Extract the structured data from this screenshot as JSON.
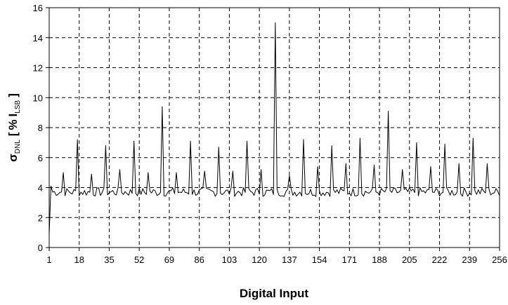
{
  "chart_data": {
    "type": "line",
    "title": "",
    "xlabel": "Digital Input",
    "ylabel": {
      "symbol": "σ",
      "symbol_sub": "DNL",
      "bracket_open": "[",
      "percent": "%",
      "main": "I",
      "main_sub": "LSB",
      "bracket_close": "]"
    },
    "xlim": [
      1,
      256
    ],
    "ylim": [
      0,
      16
    ],
    "x_ticks": [
      1,
      18,
      35,
      52,
      69,
      86,
      103,
      120,
      137,
      154,
      171,
      188,
      205,
      222,
      239,
      256
    ],
    "x_tick_labels": [
      "1",
      "18",
      "35",
      "52",
      "69",
      "86",
      "103",
      "120",
      "137",
      "154",
      "171",
      "188",
      "205",
      "222",
      "239",
      "256"
    ],
    "y_ticks": [
      0,
      2,
      4,
      6,
      8,
      10,
      12,
      14,
      16
    ],
    "y_tick_labels": [
      "0",
      "2",
      "4",
      "6",
      "8",
      "10",
      "12",
      "14",
      "16"
    ],
    "grid": true,
    "legend": "none",
    "series": [
      {
        "baseline": 3.7,
        "spikes": [
          {
            "x": 1,
            "y": 0.9
          },
          {
            "x": 2,
            "y": 4.1
          },
          {
            "x": 9,
            "y": 5.0
          },
          {
            "x": 17,
            "y": 7.2
          },
          {
            "x": 25,
            "y": 4.9
          },
          {
            "x": 33,
            "y": 6.8
          },
          {
            "x": 41,
            "y": 5.2
          },
          {
            "x": 49,
            "y": 7.1
          },
          {
            "x": 57,
            "y": 5.0
          },
          {
            "x": 65,
            "y": 9.4
          },
          {
            "x": 73,
            "y": 5.0
          },
          {
            "x": 81,
            "y": 7.1
          },
          {
            "x": 89,
            "y": 5.1
          },
          {
            "x": 97,
            "y": 6.7
          },
          {
            "x": 105,
            "y": 5.1
          },
          {
            "x": 113,
            "y": 7.1
          },
          {
            "x": 121,
            "y": 5.2
          },
          {
            "x": 129,
            "y": 15.0
          },
          {
            "x": 137,
            "y": 4.8
          },
          {
            "x": 145,
            "y": 7.2
          },
          {
            "x": 153,
            "y": 5.4
          },
          {
            "x": 161,
            "y": 6.8
          },
          {
            "x": 169,
            "y": 5.6
          },
          {
            "x": 177,
            "y": 7.3
          },
          {
            "x": 185,
            "y": 5.5
          },
          {
            "x": 193,
            "y": 9.1
          },
          {
            "x": 201,
            "y": 5.2
          },
          {
            "x": 209,
            "y": 7.0
          },
          {
            "x": 217,
            "y": 5.4
          },
          {
            "x": 225,
            "y": 6.9
          },
          {
            "x": 233,
            "y": 5.6
          },
          {
            "x": 241,
            "y": 7.3
          },
          {
            "x": 249,
            "y": 5.6
          }
        ]
      }
    ]
  }
}
